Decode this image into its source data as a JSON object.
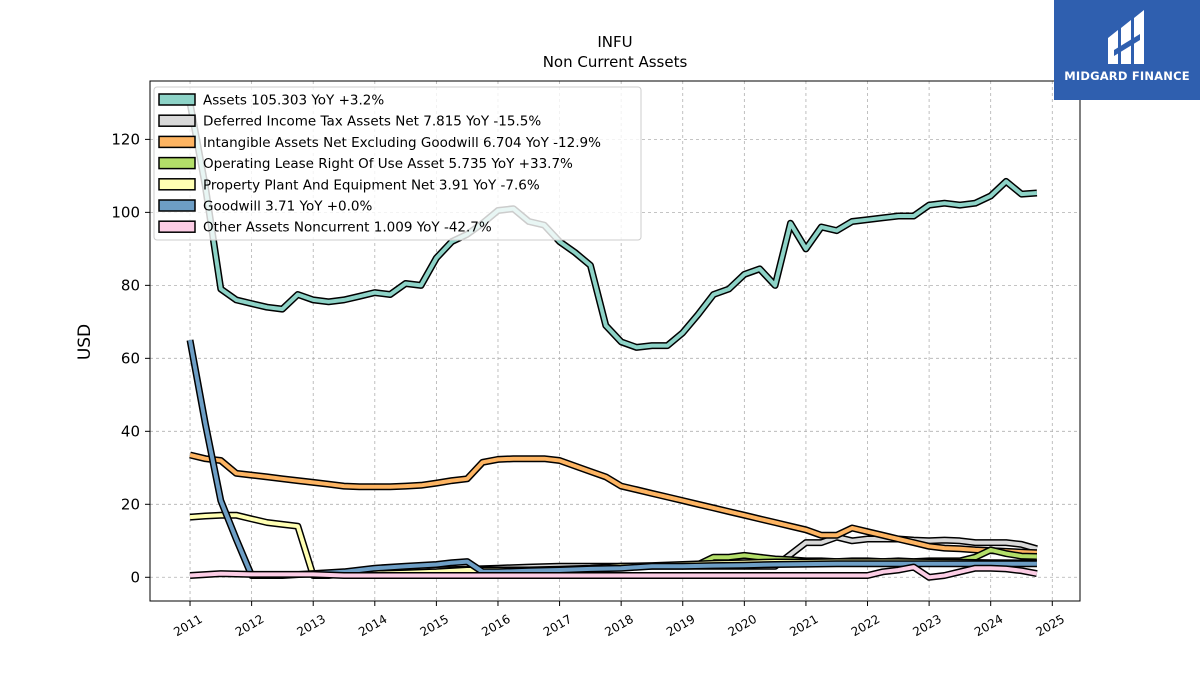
{
  "brand": {
    "name": "MIDGARD FINANCE",
    "bg": "#2f5faf"
  },
  "chart_data": {
    "type": "line",
    "title": "INFU",
    "subtitle": "Non Current  Assets",
    "ylabel": "USD",
    "xlabel": "",
    "xlim": [
      2010.35,
      2025.45
    ],
    "ylim": [
      -6.5,
      136
    ],
    "yticks": [
      0,
      20,
      40,
      60,
      80,
      100,
      120
    ],
    "xticks": [
      2011,
      2012,
      2013,
      2014,
      2015,
      2016,
      2017,
      2018,
      2019,
      2020,
      2021,
      2022,
      2023,
      2024,
      2025
    ],
    "grid": true,
    "legend_position": "top-left",
    "series": [
      {
        "name": "Assets  105.303 YoY +3.2%",
        "color": "#8dd3c7",
        "x": [
          2011.0,
          2011.25,
          2011.5,
          2011.75,
          2012.0,
          2012.25,
          2012.5,
          2012.75,
          2013.0,
          2013.25,
          2013.5,
          2013.75,
          2014.0,
          2014.25,
          2014.5,
          2014.75,
          2015.0,
          2015.25,
          2015.5,
          2015.75,
          2016.0,
          2016.25,
          2016.5,
          2016.75,
          2017.0,
          2017.25,
          2017.5,
          2017.75,
          2018.0,
          2018.25,
          2018.5,
          2018.75,
          2019.0,
          2019.25,
          2019.5,
          2019.75,
          2020.0,
          2020.25,
          2020.5,
          2020.75,
          2021.0,
          2021.25,
          2021.5,
          2021.75,
          2022.0,
          2022.25,
          2022.5,
          2022.75,
          2023.0,
          2023.25,
          2023.5,
          2023.75,
          2024.0,
          2024.25,
          2024.5,
          2024.75
        ],
        "y": [
          130.0,
          107.0,
          79.0,
          76.0,
          75.0,
          74.0,
          73.5,
          77.5,
          76.0,
          75.5,
          76.0,
          77.0,
          78.0,
          77.5,
          80.5,
          80.0,
          87.5,
          92.0,
          94.0,
          97.0,
          100.5,
          101.0,
          97.5,
          96.5,
          92.0,
          89.0,
          85.5,
          69.0,
          64.5,
          63.0,
          63.5,
          63.5,
          67.0,
          72.0,
          77.5,
          79.0,
          83.0,
          84.5,
          80.0,
          97.0,
          90.0,
          96.0,
          95.0,
          97.5,
          98.0,
          98.5,
          99.0,
          99.0,
          102.0,
          102.5,
          102.0,
          102.5,
          104.5,
          108.5,
          105.0,
          105.3
        ]
      },
      {
        "name": "Deferred Income Tax Assets Net  7.815 YoY -15.5%",
        "color": "#d9d9d9",
        "x": [
          2013.0,
          2013.5,
          2014.0,
          2014.5,
          2015.0,
          2015.5,
          2016.0,
          2016.5,
          2017.0,
          2017.5,
          2018.0,
          2018.5,
          2019.0,
          2019.5,
          2020.0,
          2020.5,
          2021.0,
          2021.25,
          2021.5,
          2021.75,
          2022.0,
          2022.25,
          2022.5,
          2022.75,
          2023.0,
          2023.25,
          2023.5,
          2023.75,
          2024.0,
          2024.25,
          2024.5,
          2024.75
        ],
        "y": [
          1.0,
          1.2,
          1.5,
          1.8,
          2.0,
          2.2,
          2.5,
          2.8,
          3.0,
          3.0,
          3.0,
          3.0,
          3.0,
          3.0,
          3.0,
          3.0,
          9.5,
          9.5,
          11.0,
          10.0,
          10.5,
          10.5,
          10.5,
          10.2,
          10.0,
          10.2,
          10.0,
          9.5,
          9.5,
          9.5,
          9.0,
          7.8
        ]
      },
      {
        "name": "Intangible Assets Net Excluding Goodwill  6.704 YoY -12.9%",
        "color": "#fdb462",
        "x": [
          2011.0,
          2011.25,
          2011.5,
          2011.75,
          2012.0,
          2012.25,
          2012.5,
          2012.75,
          2013.0,
          2013.25,
          2013.5,
          2013.75,
          2014.0,
          2014.25,
          2014.5,
          2014.75,
          2015.0,
          2015.25,
          2015.5,
          2015.75,
          2016.0,
          2016.25,
          2016.5,
          2016.75,
          2017.0,
          2017.25,
          2017.5,
          2017.75,
          2018.0,
          2018.25,
          2018.5,
          2018.75,
          2019.0,
          2019.25,
          2019.5,
          2019.75,
          2020.0,
          2020.25,
          2020.5,
          2020.75,
          2021.0,
          2021.25,
          2021.5,
          2021.75,
          2022.0,
          2022.25,
          2022.5,
          2022.75,
          2023.0,
          2023.25,
          2023.5,
          2023.75,
          2024.0,
          2024.25,
          2024.5,
          2024.75
        ],
        "y": [
          33.5,
          32.5,
          32.0,
          28.5,
          28.0,
          27.5,
          27.0,
          26.5,
          26.0,
          25.5,
          25.0,
          24.8,
          24.8,
          24.8,
          25.0,
          25.2,
          25.8,
          26.5,
          27.0,
          31.5,
          32.3,
          32.5,
          32.5,
          32.5,
          32.0,
          30.5,
          29.0,
          27.5,
          25.0,
          24.0,
          23.0,
          22.0,
          21.0,
          20.0,
          19.0,
          18.0,
          17.0,
          16.0,
          15.0,
          14.0,
          13.0,
          11.5,
          11.5,
          13.5,
          12.5,
          11.5,
          10.5,
          9.5,
          8.5,
          8.0,
          7.8,
          7.5,
          7.3,
          7.1,
          6.9,
          6.7
        ]
      },
      {
        "name": "Operating Lease Right Of Use Asset  5.735 YoY +33.7%",
        "color": "#b3de69",
        "x": [
          2019.0,
          2019.25,
          2019.5,
          2019.75,
          2020.0,
          2020.25,
          2020.5,
          2020.75,
          2021.0,
          2021.25,
          2021.5,
          2021.75,
          2022.0,
          2022.25,
          2022.5,
          2022.75,
          2023.0,
          2023.25,
          2023.5,
          2023.75,
          2024.0,
          2024.25,
          2024.5,
          2024.75
        ],
        "y": [
          3.5,
          3.5,
          5.5,
          5.5,
          6.0,
          5.5,
          5.0,
          4.8,
          4.5,
          4.5,
          4.3,
          4.5,
          4.5,
          4.3,
          4.5,
          4.3,
          4.5,
          4.5,
          4.5,
          5.5,
          7.5,
          6.5,
          5.8,
          5.7
        ]
      },
      {
        "name": "Property Plant And Equipment Net  3.91 YoY -7.6%",
        "color": "#ffffb3",
        "x": [
          2011.0,
          2011.25,
          2011.5,
          2011.75,
          2012.0,
          2012.25,
          2012.5,
          2012.75,
          2013.0,
          2013.25,
          2013.5,
          2014.0,
          2014.5,
          2015.0,
          2015.5,
          2016.0,
          2016.5,
          2017.0,
          2017.5,
          2018.0,
          2018.5,
          2019.0,
          2019.5,
          2020.0,
          2020.5,
          2021.0,
          2021.5,
          2022.0,
          2022.5,
          2023.0,
          2023.5,
          2024.0,
          2024.5,
          2024.75
        ],
        "y": [
          16.5,
          16.8,
          17.0,
          17.0,
          16.0,
          15.0,
          14.5,
          14.0,
          0.5,
          0.5,
          1.0,
          1.0,
          1.2,
          1.5,
          2.0,
          2.0,
          2.0,
          2.2,
          2.5,
          3.0,
          3.2,
          3.5,
          3.8,
          4.0,
          4.2,
          4.2,
          4.3,
          4.3,
          4.3,
          4.2,
          4.1,
          4.0,
          3.95,
          3.9
        ]
      },
      {
        "name": "Goodwill  3.71 YoY +0.0%",
        "color": "#6d9ec5",
        "x": [
          2011.0,
          2011.25,
          2011.5,
          2011.75,
          2012.0,
          2012.5,
          2013.0,
          2013.5,
          2014.0,
          2014.5,
          2015.0,
          2015.25,
          2015.5,
          2015.75,
          2016.0,
          2016.5,
          2017.0,
          2017.5,
          2018.0,
          2018.5,
          2019.0,
          2019.5,
          2020.0,
          2020.5,
          2021.0,
          2021.5,
          2022.0,
          2022.5,
          2023.0,
          2023.5,
          2024.0,
          2024.5,
          2024.75
        ],
        "y": [
          65.0,
          42.0,
          21.0,
          10.5,
          0.5,
          0.5,
          1.0,
          1.5,
          2.5,
          3.0,
          3.5,
          4.0,
          4.3,
          1.5,
          1.5,
          1.8,
          2.0,
          2.3,
          2.5,
          3.0,
          3.0,
          3.2,
          3.3,
          3.5,
          3.6,
          3.7,
          3.7,
          3.7,
          3.7,
          3.7,
          3.7,
          3.7,
          3.71
        ]
      },
      {
        "name": "Other Assets Noncurrent  1.009 YoY -42.7%",
        "color": "#fccde5",
        "x": [
          2011.0,
          2011.5,
          2012.0,
          2012.5,
          2013.0,
          2013.5,
          2014.0,
          2014.5,
          2015.0,
          2015.5,
          2016.0,
          2016.5,
          2017.0,
          2017.5,
          2018.0,
          2018.5,
          2019.0,
          2019.5,
          2020.0,
          2020.5,
          2021.0,
          2021.5,
          2022.0,
          2022.25,
          2022.5,
          2022.75,
          2023.0,
          2023.25,
          2023.5,
          2023.75,
          2024.0,
          2024.25,
          2024.5,
          2024.75
        ],
        "y": [
          0.5,
          1.0,
          0.8,
          0.8,
          0.8,
          0.5,
          0.5,
          0.5,
          0.5,
          0.5,
          0.5,
          0.5,
          0.5,
          0.5,
          0.5,
          0.5,
          0.5,
          0.5,
          0.5,
          0.5,
          0.5,
          0.5,
          0.5,
          1.5,
          2.0,
          2.8,
          0.0,
          0.5,
          1.5,
          2.5,
          2.5,
          2.3,
          1.8,
          1.0
        ]
      }
    ]
  }
}
